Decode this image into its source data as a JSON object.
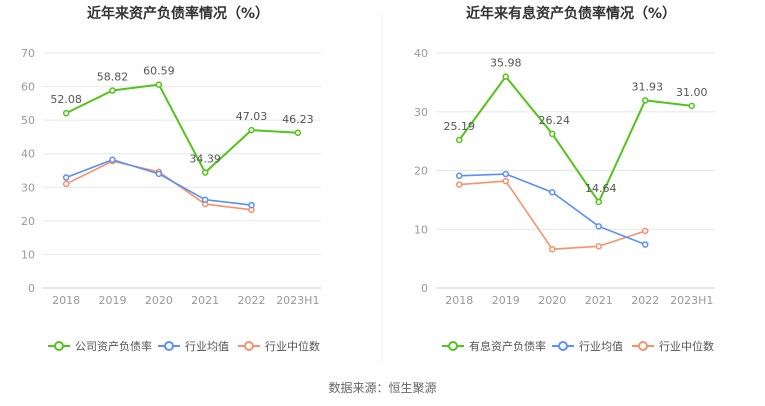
{
  "source": "数据来源：恒生聚源",
  "colors": {
    "company": "#52c41a",
    "industry_avg": "#5b8ff9",
    "industry_median": "#f6916b",
    "axis_text": "#999999",
    "grid": "#e8e8e8",
    "title": "#333333",
    "label": "#555555"
  },
  "chart_data": [
    {
      "type": "line",
      "title": "近年来资产负债率情况（%）",
      "categories": [
        "2018",
        "2019",
        "2020",
        "2021",
        "2022",
        "2023H1"
      ],
      "ylim": [
        0,
        70
      ],
      "yticks": [
        0,
        10,
        20,
        30,
        40,
        50,
        60,
        70
      ],
      "grid": true,
      "legend_position": "bottom",
      "series": [
        {
          "name": "公司资产负债率",
          "color": "#52c41a",
          "values": [
            52.08,
            58.82,
            60.59,
            34.39,
            47.03,
            46.23
          ],
          "labels": [
            "52.08",
            "58.82",
            "60.59",
            "34.39",
            "47.03",
            "46.23"
          ]
        },
        {
          "name": "行业均值",
          "color": "#5b8ff9",
          "values": [
            32.9,
            38.2,
            34.0,
            26.3,
            24.7,
            null
          ]
        },
        {
          "name": "行业中位数",
          "color": "#f6916b",
          "values": [
            31.0,
            37.8,
            34.6,
            25.0,
            23.3,
            null
          ]
        }
      ]
    },
    {
      "type": "line",
      "title": "近年来有息资产负债率情况（%）",
      "categories": [
        "2018",
        "2019",
        "2020",
        "2021",
        "2022",
        "2023H1"
      ],
      "ylim": [
        0,
        40
      ],
      "yticks": [
        0,
        10,
        20,
        30,
        40
      ],
      "grid": true,
      "legend_position": "bottom",
      "series": [
        {
          "name": "有息资产负债率",
          "color": "#52c41a",
          "values": [
            25.19,
            35.98,
            26.24,
            14.64,
            31.93,
            31.0
          ],
          "labels": [
            "25.19",
            "35.98",
            "26.24",
            "14.64",
            "31.93",
            "31.00"
          ]
        },
        {
          "name": "行业均值",
          "color": "#5b8ff9",
          "values": [
            19.1,
            19.4,
            16.3,
            10.5,
            7.4,
            null
          ]
        },
        {
          "name": "行业中位数",
          "color": "#f6916b",
          "values": [
            17.6,
            18.2,
            6.6,
            7.1,
            9.7,
            null
          ]
        }
      ]
    }
  ]
}
